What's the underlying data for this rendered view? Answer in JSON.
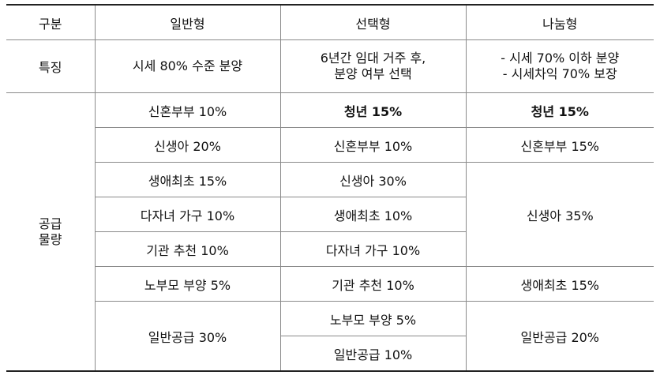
{
  "table": {
    "header": [
      "구분",
      "일반형",
      "선택형",
      "나눔형"
    ],
    "feature": {
      "label": "특징",
      "cells": [
        [
          "시세 80% 수준 분양"
        ],
        [
          "6년간 임대 거주 후,",
          "분양 여부 선택"
        ],
        [
          "- 시세 70% 이하 분양",
          "- 시세차익 70% 보장"
        ]
      ]
    },
    "supply": {
      "label": [
        "공급",
        "물량"
      ],
      "general": [
        "신혼부부 10%",
        "신생아 20%",
        "생애최초 15%",
        "다자녀 가구 10%",
        "기관 추천 10%",
        "노부모 부양 5%",
        "일반공급 30%"
      ],
      "optional": [
        "청년 15%",
        "신혼부부 10%",
        "신생아 30%",
        "생애최초 10%",
        "다자녀 가구 10%",
        "기관 추천 10%",
        "노부모 부양 5%",
        "일반공급 10%"
      ],
      "shared": [
        "청년 15%",
        "신혼부부 15%",
        "신생아 35%",
        "생애최초 15%",
        "일반공급 20%"
      ]
    }
  }
}
